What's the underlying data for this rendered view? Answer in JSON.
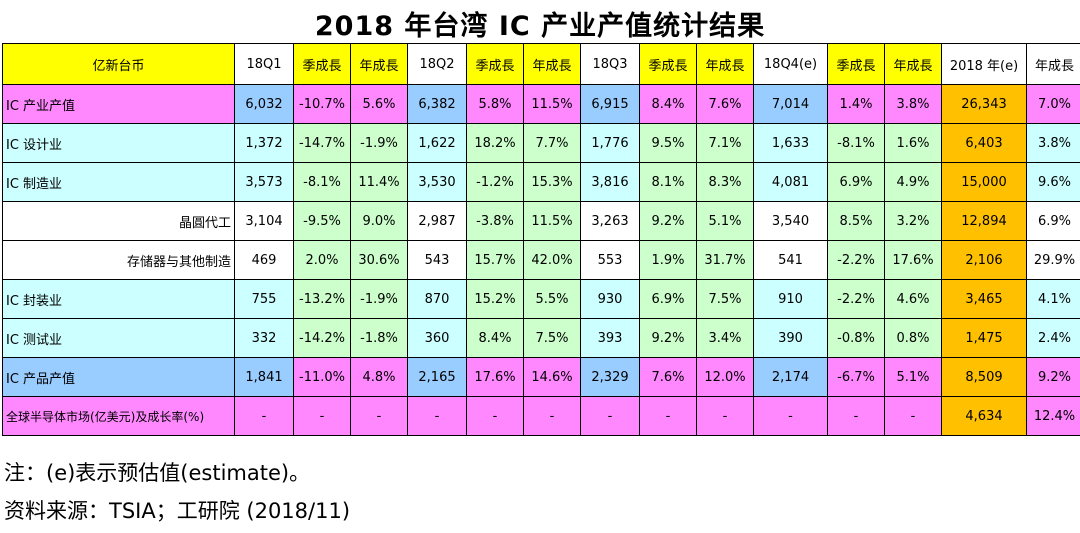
{
  "title": "2018 年台湾 IC 产业产值统计结果",
  "colors": {
    "header_yellow": "#ffff00",
    "magenta": "#ff88ff",
    "cyan": "#ccffff",
    "green": "#ccffcc",
    "blue": "#99ccff",
    "orange": "#ffc000",
    "white": "#ffffff"
  },
  "headers": [
    "亿新台币",
    "18Q1",
    "季成長",
    "年成長",
    "18Q2",
    "季成長",
    "年成長",
    "18Q3",
    "季成長",
    "年成長",
    "18Q4(e)",
    "季成長",
    "年成長",
    "2018 年(e)",
    "年成長"
  ],
  "header_bg": [
    "header_yellow",
    "white",
    "header_yellow",
    "header_yellow",
    "white",
    "header_yellow",
    "header_yellow",
    "white",
    "header_yellow",
    "header_yellow",
    "white",
    "header_yellow",
    "header_yellow",
    "white",
    "white"
  ],
  "rows": [
    {
      "label": "IC 产业产值",
      "align": "left",
      "cells": [
        "6,032",
        "-10.7%",
        "5.6%",
        "6,382",
        "5.8%",
        "11.5%",
        "6,915",
        "8.4%",
        "7.6%",
        "7,014",
        "1.4%",
        "3.8%",
        "26,343",
        "7.0%"
      ],
      "bg": [
        "magenta",
        "blue",
        "magenta",
        "magenta",
        "blue",
        "magenta",
        "magenta",
        "blue",
        "magenta",
        "magenta",
        "blue",
        "magenta",
        "magenta",
        "orange",
        "magenta"
      ]
    },
    {
      "label": "IC 设计业",
      "align": "left",
      "cells": [
        "1,372",
        "-14.7%",
        "-1.9%",
        "1,622",
        "18.2%",
        "7.7%",
        "1,776",
        "9.5%",
        "7.1%",
        "1,633",
        "-8.1%",
        "1.6%",
        "6,403",
        "3.8%"
      ],
      "bg": [
        "cyan",
        "cyan",
        "green",
        "green",
        "cyan",
        "green",
        "green",
        "cyan",
        "green",
        "green",
        "cyan",
        "green",
        "green",
        "orange",
        "cyan"
      ]
    },
    {
      "label": "IC 制造业",
      "align": "left",
      "cells": [
        "3,573",
        "-8.1%",
        "11.4%",
        "3,530",
        "-1.2%",
        "15.3%",
        "3,816",
        "8.1%",
        "8.3%",
        "4,081",
        "6.9%",
        "4.9%",
        "15,000",
        "9.6%"
      ],
      "bg": [
        "cyan",
        "cyan",
        "green",
        "green",
        "cyan",
        "green",
        "green",
        "cyan",
        "green",
        "green",
        "cyan",
        "green",
        "green",
        "orange",
        "cyan"
      ]
    },
    {
      "label": "晶圓代工",
      "align": "right",
      "cells": [
        "3,104",
        "-9.5%",
        "9.0%",
        "2,987",
        "-3.8%",
        "11.5%",
        "3,263",
        "9.2%",
        "5.1%",
        "3,540",
        "8.5%",
        "3.2%",
        "12,894",
        "6.9%"
      ],
      "bg": [
        "white",
        "white",
        "green",
        "green",
        "white",
        "green",
        "green",
        "white",
        "green",
        "green",
        "white",
        "green",
        "green",
        "orange",
        "white"
      ]
    },
    {
      "label": "存储器与其他制造",
      "align": "right",
      "cells": [
        "469",
        "2.0%",
        "30.6%",
        "543",
        "15.7%",
        "42.0%",
        "553",
        "1.9%",
        "31.7%",
        "541",
        "-2.2%",
        "17.6%",
        "2,106",
        "29.9%"
      ],
      "bg": [
        "white",
        "white",
        "green",
        "green",
        "white",
        "green",
        "green",
        "white",
        "green",
        "green",
        "white",
        "green",
        "green",
        "orange",
        "white"
      ]
    },
    {
      "label": "IC 封装业",
      "align": "left",
      "cells": [
        "755",
        "-13.2%",
        "-1.9%",
        "870",
        "15.2%",
        "5.5%",
        "930",
        "6.9%",
        "7.5%",
        "910",
        "-2.2%",
        "4.6%",
        "3,465",
        "4.1%"
      ],
      "bg": [
        "cyan",
        "cyan",
        "green",
        "green",
        "cyan",
        "green",
        "green",
        "cyan",
        "green",
        "green",
        "cyan",
        "green",
        "green",
        "orange",
        "cyan"
      ]
    },
    {
      "label": "IC 测试业",
      "align": "left",
      "cells": [
        "332",
        "-14.2%",
        "-1.8%",
        "360",
        "8.4%",
        "7.5%",
        "393",
        "9.2%",
        "3.4%",
        "390",
        "-0.8%",
        "0.8%",
        "1,475",
        "2.4%"
      ],
      "bg": [
        "cyan",
        "cyan",
        "green",
        "green",
        "cyan",
        "green",
        "green",
        "cyan",
        "green",
        "green",
        "cyan",
        "green",
        "green",
        "orange",
        "cyan"
      ]
    },
    {
      "label": "IC 产品产值",
      "align": "left",
      "cells": [
        "1,841",
        "-11.0%",
        "4.8%",
        "2,165",
        "17.6%",
        "14.6%",
        "2,329",
        "7.6%",
        "12.0%",
        "2,174",
        "-6.7%",
        "5.1%",
        "8,509",
        "9.2%"
      ],
      "bg": [
        "blue",
        "blue",
        "magenta",
        "magenta",
        "blue",
        "magenta",
        "magenta",
        "blue",
        "magenta",
        "magenta",
        "blue",
        "magenta",
        "magenta",
        "orange",
        "magenta"
      ]
    },
    {
      "label": "全球半导体市场(亿美元)及成长率(%)",
      "align": "left",
      "small": true,
      "cells": [
        "-",
        "-",
        "-",
        "-",
        "-",
        "-",
        "-",
        "-",
        "-",
        "-",
        "-",
        "-",
        "4,634",
        "12.4%"
      ],
      "bg": [
        "magenta",
        "magenta",
        "magenta",
        "magenta",
        "magenta",
        "magenta",
        "magenta",
        "magenta",
        "magenta",
        "magenta",
        "magenta",
        "magenta",
        "magenta",
        "orange",
        "magenta"
      ]
    }
  ],
  "notes": {
    "note1": "注：(e)表示预估值(estimate)。",
    "note2": "资料来源：TSIA；工研院  (2018/11)"
  }
}
